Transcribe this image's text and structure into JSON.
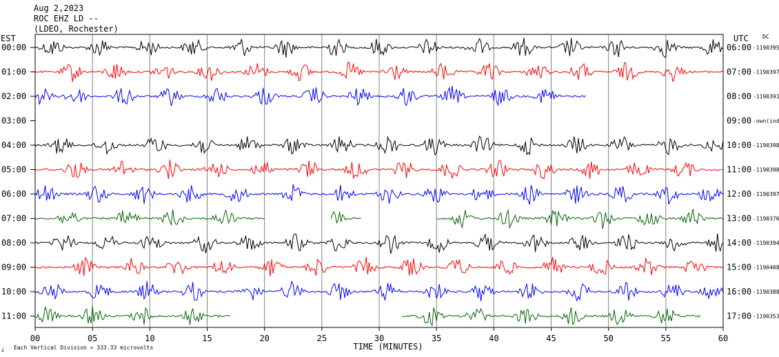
{
  "header": {
    "date": "Aug 2,2023",
    "station": "ROC EHZ LD --",
    "network": "(LDEO, Rochester)"
  },
  "axes": {
    "left_zone": "EST",
    "right_zone": "UTC",
    "right_corner": "DC",
    "xlabel": "TIME (MINUTES)",
    "footnote": "Each Vertical Division =  333.33 microvolts",
    "footnote_mark": "¿"
  },
  "chart_data": {
    "type": "line",
    "title": "ROC EHZ LD --",
    "xlabel": "TIME (MINUTES)",
    "ylabel": "",
    "xlim": [
      0,
      60
    ],
    "x_ticks": [
      "00",
      "05",
      "10",
      "15",
      "20",
      "25",
      "30",
      "35",
      "40",
      "45",
      "50",
      "55",
      "60"
    ],
    "vertical_division_microvolts": 333.33,
    "grid": true,
    "colors": [
      "#000000",
      "#ff0000",
      "#0000ff",
      "#006400"
    ],
    "series": [
      {
        "est": "00:00",
        "utc": "06:00",
        "dc": "-1190395",
        "color": "#000000",
        "segments": [
          [
            0,
            60
          ]
        ],
        "burst_minutes": [
          1.5,
          5.6,
          9.8,
          13.8,
          18,
          21.8,
          26.2,
          30,
          34.4,
          38.6,
          42.6,
          46.7,
          50.8,
          55,
          59
        ]
      },
      {
        "est": "01:00",
        "utc": "07:00",
        "dc": "-1190397",
        "color": "#ff0000",
        "segments": [
          [
            0,
            60
          ]
        ],
        "burst_minutes": [
          3.2,
          7,
          11.2,
          15.2,
          19.3,
          23.2,
          27.5,
          31.3,
          35.6,
          39.6,
          43.8,
          47.6,
          51.6,
          55.6
        ]
      },
      {
        "est": "02:00",
        "utc": "08:00",
        "dc": "-1190391",
        "color": "#0000ff",
        "segments": [
          [
            0,
            48
          ]
        ],
        "burst_minutes": [
          0.5,
          3.5,
          7.8,
          11.8,
          15.8,
          20,
          24.3,
          28.2,
          32.4,
          36.4,
          40.6,
          44.6
        ]
      },
      {
        "est": "03:00",
        "utc": "09:00",
        "dc": "-nwn(ind",
        "color": "#006400",
        "segments": [],
        "burst_minutes": []
      },
      {
        "est": "04:00",
        "utc": "10:00",
        "dc": "-1190398",
        "color": "#000000",
        "segments": [
          [
            0,
            60
          ]
        ],
        "burst_minutes": [
          2.2,
          6.2,
          10.5,
          14.6,
          18.6,
          22.6,
          26.7,
          30.8,
          34.8,
          39,
          43,
          47.2,
          51.2,
          55.3,
          59.3
        ]
      },
      {
        "est": "05:00",
        "utc": "11:00",
        "dc": "-1190390",
        "color": "#ff0000",
        "segments": [
          [
            0,
            60
          ]
        ],
        "burst_minutes": [
          3.5,
          7.6,
          11.7,
          15.8,
          19.8,
          23.9,
          28,
          32.2,
          36.2,
          40.3,
          44.4,
          48.5,
          52.6,
          56.6
        ]
      },
      {
        "est": "06:00",
        "utc": "12:00",
        "dc": "-1190397",
        "color": "#0000ff",
        "segments": [
          [
            0,
            60
          ]
        ],
        "burst_minutes": [
          1,
          5.4,
          9.4,
          13.5,
          17.6,
          22.5,
          26.8,
          30.8,
          34.9,
          39,
          43.1,
          47.2,
          51.2,
          55.2,
          58.8
        ]
      },
      {
        "est": "07:00",
        "utc": "13:00",
        "dc": "-1190376",
        "color": "#006400",
        "segments": [
          [
            0,
            20
          ],
          [
            25.8,
            28.5
          ],
          [
            35,
            60
          ]
        ],
        "burst_minutes": [
          3,
          8,
          12,
          16.5,
          26,
          37.2,
          41.3,
          45.4,
          49.5,
          53.5,
          57.4
        ]
      },
      {
        "est": "08:00",
        "utc": "14:00",
        "dc": "-1190394",
        "color": "#000000",
        "segments": [
          [
            0,
            60
          ]
        ],
        "burst_minutes": [
          2.5,
          6.2,
          10.2,
          14.8,
          18.7,
          22.8,
          26.5,
          31,
          35.2,
          39.4,
          43.6,
          47.6,
          51.6,
          55.7,
          59.6
        ]
      },
      {
        "est": "09:00",
        "utc": "15:00",
        "dc": "-1190408",
        "color": "#ff0000",
        "segments": [
          [
            0,
            60
          ]
        ],
        "burst_minutes": [
          4.3,
          8.5,
          12.4,
          16.4,
          20.6,
          24.6,
          28.8,
          32.8,
          36.9,
          41,
          45.2,
          49.4,
          53.4,
          57.6
        ]
      },
      {
        "est": "10:00",
        "utc": "16:00",
        "dc": "-1190388",
        "color": "#0000ff",
        "segments": [
          [
            0,
            60
          ]
        ],
        "burst_minutes": [
          1.5,
          5.6,
          9.8,
          13.8,
          18.8,
          22.4,
          26.5,
          30.7,
          34.9,
          39,
          43.2,
          47.4,
          51.5,
          55.6,
          59
        ]
      },
      {
        "est": "11:00",
        "utc": "17:00",
        "dc": "-1190353",
        "color": "#006400",
        "segments": [
          [
            0,
            17
          ],
          [
            32,
            58
          ]
        ],
        "burst_minutes": [
          1,
          5,
          9.4,
          13.6,
          34.5,
          38.5,
          42.8,
          46.8,
          51,
          55
        ]
      }
    ]
  }
}
